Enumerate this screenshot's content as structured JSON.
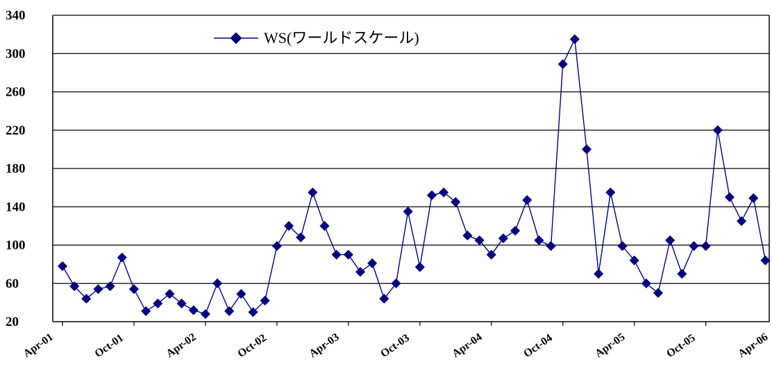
{
  "chart_data": {
    "type": "line",
    "title": "",
    "xlabel": "",
    "ylabel": "",
    "ylim": [
      20,
      340
    ],
    "yticks": [
      20,
      60,
      100,
      140,
      180,
      220,
      260,
      300,
      340
    ],
    "grid": "horizontal",
    "legend_position": "top-left",
    "line_color": "#000080",
    "x_tick_labels": [
      "Apr-01",
      "Oct-01",
      "Apr-02",
      "Oct-02",
      "Apr-03",
      "Oct-03",
      "Apr-04",
      "Oct-04",
      "Apr-05",
      "Oct-05",
      "Apr-06"
    ],
    "series": [
      {
        "name": "WS(ワールドスケール)",
        "values": [
          78,
          57,
          44,
          54,
          57,
          87,
          54,
          31,
          39,
          49,
          39,
          32,
          28,
          60,
          31,
          49,
          30,
          42,
          99,
          120,
          108,
          155,
          120,
          90,
          90,
          72,
          81,
          44,
          60,
          135,
          77,
          152,
          155,
          145,
          110,
          105,
          90,
          107,
          115,
          147,
          105,
          99,
          289,
          315,
          200,
          70,
          155,
          99,
          84,
          60,
          50,
          105,
          70,
          99,
          99,
          220,
          150,
          125,
          149,
          84
        ]
      }
    ]
  }
}
